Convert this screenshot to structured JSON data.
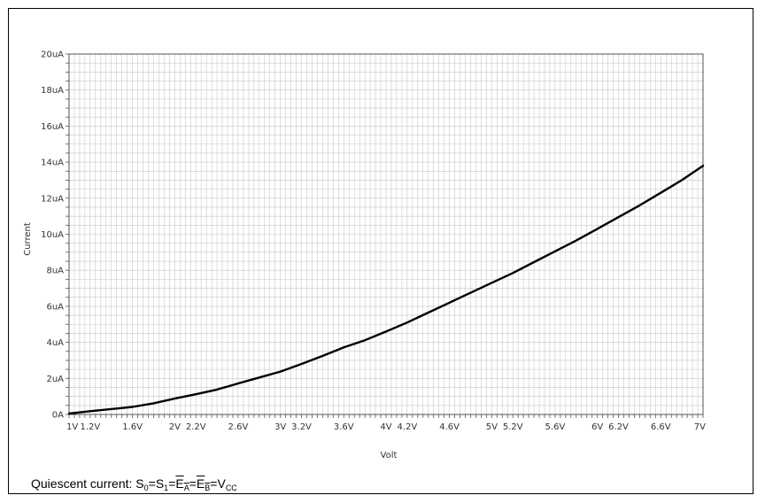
{
  "chart_data": {
    "type": "line",
    "xlabel": "Volt",
    "ylabel": "Current",
    "xlim": [
      1,
      7
    ],
    "ylim": [
      0,
      20
    ],
    "grid": true,
    "x_ticks": [
      {
        "v": 1,
        "label": "1V"
      },
      {
        "v": 1.2,
        "label": "1.2V"
      },
      {
        "v": 1.6,
        "label": "1.6V"
      },
      {
        "v": 2,
        "label": "2V"
      },
      {
        "v": 2.2,
        "label": "2.2V"
      },
      {
        "v": 2.6,
        "label": "2.6V"
      },
      {
        "v": 3,
        "label": "3V"
      },
      {
        "v": 3.2,
        "label": "3.2V"
      },
      {
        "v": 3.6,
        "label": "3.6V"
      },
      {
        "v": 4,
        "label": "4V"
      },
      {
        "v": 4.2,
        "label": "4.2V"
      },
      {
        "v": 4.6,
        "label": "4.6V"
      },
      {
        "v": 5,
        "label": "5V"
      },
      {
        "v": 5.2,
        "label": "5.2V"
      },
      {
        "v": 5.6,
        "label": "5.6V"
      },
      {
        "v": 6,
        "label": "6V"
      },
      {
        "v": 6.2,
        "label": "6.2V"
      },
      {
        "v": 6.6,
        "label": "6.6V"
      },
      {
        "v": 7,
        "label": "7V"
      }
    ],
    "y_ticks": [
      {
        "v": 0,
        "label": "0A"
      },
      {
        "v": 2,
        "label": "2uA"
      },
      {
        "v": 4,
        "label": "4uA"
      },
      {
        "v": 6,
        "label": "6uA"
      },
      {
        "v": 8,
        "label": "8uA"
      },
      {
        "v": 10,
        "label": "10uA"
      },
      {
        "v": 12,
        "label": "12uA"
      },
      {
        "v": 14,
        "label": "14uA"
      },
      {
        "v": 16,
        "label": "16uA"
      },
      {
        "v": 18,
        "label": "18uA"
      },
      {
        "v": 20,
        "label": "20uA"
      }
    ],
    "series": [
      {
        "color": "#000000",
        "x": [
          1.0,
          1.2,
          1.4,
          1.6,
          1.8,
          2.0,
          2.2,
          2.4,
          2.6,
          2.8,
          3.0,
          3.2,
          3.4,
          3.6,
          3.8,
          4.0,
          4.2,
          4.4,
          4.6,
          4.8,
          5.0,
          5.2,
          5.4,
          5.6,
          5.8,
          6.0,
          6.2,
          6.4,
          6.6,
          6.8,
          7.0
        ],
        "y": [
          0.05,
          0.18,
          0.3,
          0.42,
          0.62,
          0.88,
          1.12,
          1.38,
          1.72,
          2.05,
          2.38,
          2.8,
          3.25,
          3.72,
          4.12,
          4.6,
          5.1,
          5.65,
          6.2,
          6.75,
          7.3,
          7.85,
          8.45,
          9.05,
          9.65,
          10.3,
          10.95,
          11.6,
          12.3,
          13.0,
          13.8
        ]
      }
    ]
  },
  "caption": {
    "text": "Quiescent current: ",
    "s0": "S",
    "s0_sub": "0",
    "eq1": "=",
    "s1": "S",
    "s1_sub": "1",
    "eq2": "=",
    "ea": "E",
    "ea_sub": "A",
    "eq3": "=",
    "eb": "E",
    "eb_sub": "B",
    "eq4": "=",
    "vcc": "V",
    "vcc_sub": "CC"
  }
}
